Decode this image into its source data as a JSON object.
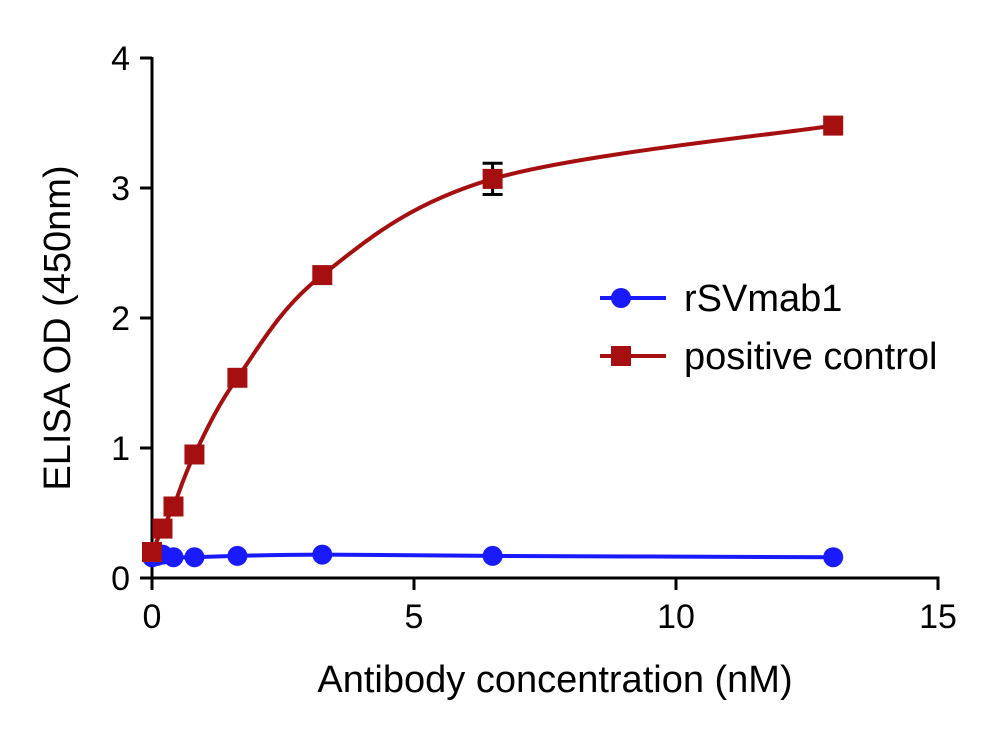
{
  "chart_data": {
    "type": "scatter",
    "xlabel": "Antibody concentration (nM)",
    "ylabel": "ELISA OD (450nm)",
    "xlim": [
      0,
      15
    ],
    "ylim": [
      0,
      4
    ],
    "xticks": [
      0,
      5,
      10,
      15
    ],
    "yticks": [
      0,
      1,
      2,
      3,
      4
    ],
    "xtick_labels": [
      "0",
      "5",
      "10",
      "15"
    ],
    "ytick_labels": [
      "0",
      "1",
      "2",
      "3",
      "4"
    ],
    "grid": false,
    "legend_position": "right-center",
    "series": [
      {
        "name": "rSVmab1",
        "color": "#1a1aff",
        "marker": "circle",
        "x": [
          0,
          0.1,
          0.2,
          0.41,
          0.81,
          1.63,
          3.25,
          6.5,
          13
        ],
        "y": [
          0.16,
          0.17,
          0.18,
          0.16,
          0.16,
          0.17,
          0.18,
          0.17,
          0.16
        ],
        "error": [
          0,
          0,
          0,
          0,
          0,
          0,
          0,
          0,
          0
        ]
      },
      {
        "name": "positive control",
        "color": "#a50f0f",
        "marker": "square",
        "x": [
          0,
          0.2,
          0.41,
          0.81,
          1.63,
          3.25,
          6.5,
          13
        ],
        "y": [
          0.2,
          0.38,
          0.55,
          0.95,
          1.54,
          2.33,
          3.07,
          3.48
        ],
        "error": [
          0,
          0,
          0,
          0,
          0,
          0,
          0.12,
          0
        ]
      }
    ]
  }
}
